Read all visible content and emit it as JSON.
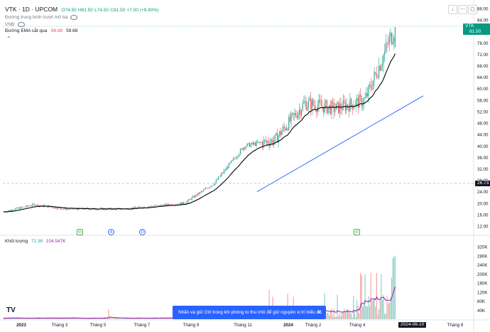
{
  "header": {
    "symbol": "VTK · 1D · UPCOM",
    "o": "O74.50",
    "h": "H81.50",
    "l": "L74.50",
    "c": "C81.50",
    "change": "+7.00 (+9.40%)",
    "indicator1": "Đường trung bình trượt mở ba",
    "vnd": "VNĐ",
    "ema_label": "Đường EMA cắt qua",
    "ema_v1": "66.88",
    "ema_v2": "59.68"
  },
  "volume_pane": {
    "label": "Khối lượng",
    "v1": "72.3K",
    "v2": "104.547K"
  },
  "price_axis": [
    "88.00",
    "84.00",
    "80.00",
    "76.00",
    "72.00",
    "68.00",
    "64.00",
    "60.00",
    "56.00",
    "52.00",
    "48.00",
    "44.00",
    "40.00",
    "36.00",
    "32.00",
    "28.00",
    "24.00",
    "20.00",
    "16.00",
    "12.00"
  ],
  "volume_axis": [
    "320K",
    "280K",
    "240K",
    "200K",
    "160K",
    "120K",
    "80K",
    "40K"
  ],
  "price_tag": {
    "symbol": "VTK",
    "value": "81.50"
  },
  "crosshair_price": "26.73",
  "time_axis": [
    {
      "label": "2023",
      "bold": true
    },
    {
      "label": "Tháng 3",
      "bold": false
    },
    {
      "label": "Tháng 5",
      "bold": false
    },
    {
      "label": "Tháng 7",
      "bold": false
    },
    {
      "label": "Tháng 9",
      "bold": false
    },
    {
      "label": "Tháng 11",
      "bold": false
    },
    {
      "label": "2024",
      "bold": true
    },
    {
      "label": "Tháng 2",
      "bold": false
    },
    {
      "label": "Tháng 4",
      "bold": false
    },
    {
      "label": "Tháng 8",
      "bold": false
    }
  ],
  "crosshair_date": "2024-06-10",
  "events": [
    {
      "type": "M"
    },
    {
      "type": "A"
    },
    {
      "type": "D"
    },
    {
      "type": "M"
    }
  ],
  "tooltip": "Nhấn và giữ Ctrl trong khi phóng to thu nhỏ để giữ nguyên vị trí biểu đồ",
  "logo": "TV",
  "colors": {
    "up": "#26a69a",
    "down": "#ef5350",
    "ema": "#000000",
    "trendline": "#2962ff",
    "vol_ma": "#9c27b0",
    "accent": "#2962ff"
  },
  "chart_data": {
    "type": "candlestick",
    "symbol": "VTK",
    "interval": "1D",
    "approx_close_path": [
      {
        "date": "2023-01",
        "close": 17
      },
      {
        "date": "2023-02",
        "close": 19.5
      },
      {
        "date": "2023-03",
        "close": 18
      },
      {
        "date": "2023-05",
        "close": 18
      },
      {
        "date": "2023-07",
        "close": 18
      },
      {
        "date": "2023-09",
        "close": 19
      },
      {
        "date": "2023-11",
        "close": 20
      },
      {
        "date": "2023-12",
        "close": 27
      },
      {
        "date": "2024-01",
        "close": 40
      },
      {
        "date": "2024-02",
        "close": 42
      },
      {
        "date": "2024-03",
        "close": 55
      },
      {
        "date": "2024-04",
        "close": 53
      },
      {
        "date": "2024-05",
        "close": 56
      },
      {
        "date": "2024-06-10",
        "close": 81.5
      }
    ],
    "ylim": [
      12,
      88
    ],
    "volume_ylim": [
      0,
      320000
    ]
  }
}
